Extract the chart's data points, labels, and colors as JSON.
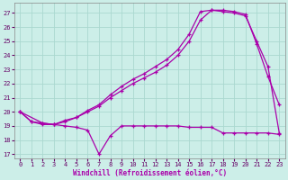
{
  "background_color": "#cceee8",
  "grid_color": "#aad8d0",
  "line_color": "#aa00aa",
  "xlim": [
    -0.5,
    23.5
  ],
  "ylim": [
    16.7,
    27.7
  ],
  "yticks": [
    17,
    18,
    19,
    20,
    21,
    22,
    23,
    24,
    25,
    26,
    27
  ],
  "xticks": [
    0,
    1,
    2,
    3,
    4,
    5,
    6,
    7,
    8,
    9,
    10,
    11,
    12,
    13,
    14,
    15,
    16,
    17,
    18,
    19,
    20,
    21,
    22,
    23
  ],
  "xlabel": "Windchill (Refroidissement éolien,°C)",
  "line1_x": [
    0,
    1,
    2,
    3,
    4,
    5,
    6,
    7,
    8,
    9,
    10,
    11,
    12,
    13,
    14,
    15,
    16,
    17,
    18,
    19,
    20,
    21,
    22,
    23
  ],
  "line1_y": [
    20,
    19.3,
    19.1,
    19.1,
    19.0,
    18.9,
    18.7,
    17.0,
    18.3,
    19.0,
    19.0,
    19.0,
    19.0,
    19.0,
    19.0,
    18.9,
    18.9,
    18.9,
    18.5,
    18.5,
    18.5,
    18.5,
    18.5,
    18.4
  ],
  "line2_x": [
    0,
    1,
    2,
    3,
    4,
    5,
    6,
    7,
    8,
    9,
    10,
    11,
    12,
    13,
    14,
    15,
    16,
    17,
    18,
    19,
    20,
    21,
    22,
    23
  ],
  "line2_y": [
    20,
    19.3,
    19.2,
    19.1,
    19.4,
    19.6,
    20.0,
    20.4,
    21.0,
    21.5,
    22.0,
    22.4,
    22.8,
    23.3,
    24.0,
    25.0,
    26.5,
    27.2,
    27.2,
    27.1,
    26.9,
    24.8,
    22.5,
    20.5
  ],
  "line3_x": [
    0,
    2,
    3,
    4,
    5,
    6,
    7,
    8,
    9,
    10,
    11,
    12,
    13,
    14,
    15,
    16,
    17,
    18,
    19,
    20,
    21,
    22,
    23
  ],
  "line3_y": [
    20,
    19.2,
    19.1,
    19.3,
    19.6,
    20.1,
    20.5,
    21.2,
    21.8,
    22.3,
    22.7,
    23.2,
    23.7,
    24.4,
    25.5,
    27.1,
    27.2,
    27.1,
    27.0,
    26.8,
    25.0,
    23.2,
    18.5
  ]
}
